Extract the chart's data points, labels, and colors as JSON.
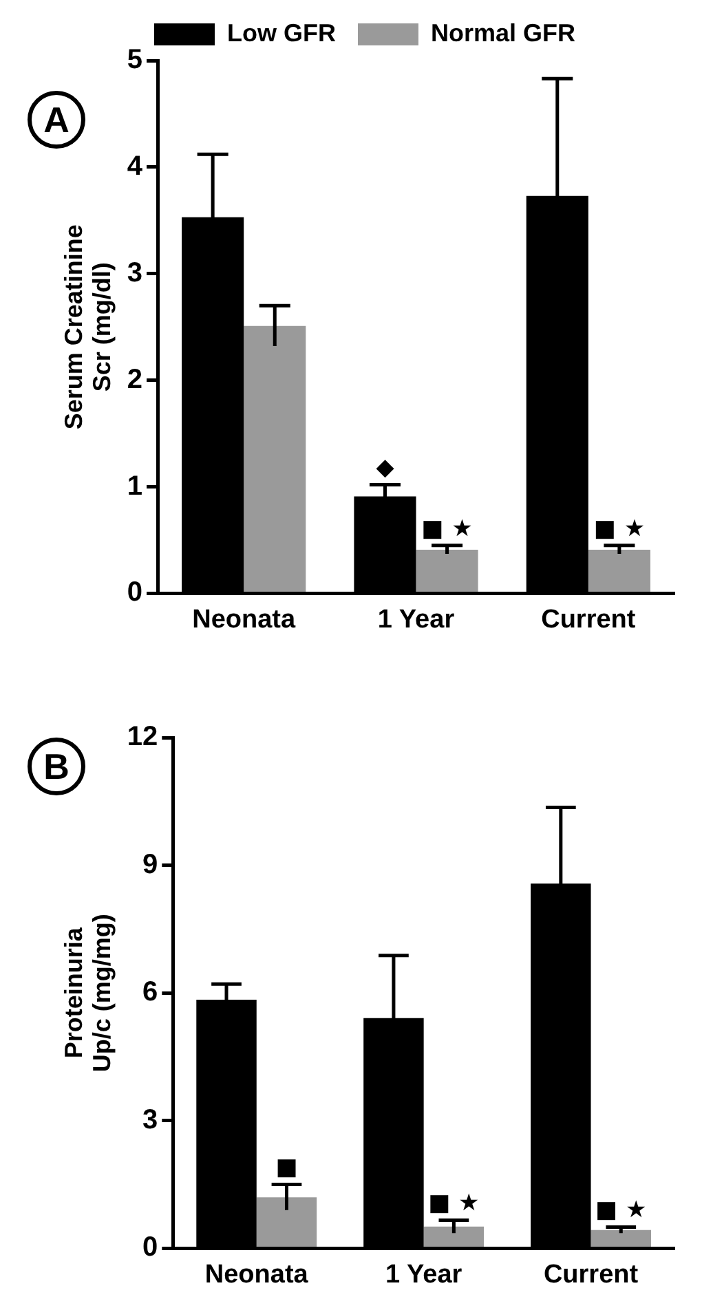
{
  "chart_data": [
    {
      "type": "bar",
      "title": "A",
      "ylabel": "Serum Creatinine\nScr (mg/dl)",
      "categories": [
        "Neonata",
        "1 Year",
        "Current"
      ],
      "series": [
        {
          "name": "Low GFR",
          "color": "#000000",
          "values": [
            3.53,
            0.91,
            3.73
          ],
          "errors": [
            0.59,
            0.11,
            1.1
          ]
        },
        {
          "name": "Normal GFR",
          "color": "#9a9a9a",
          "values": [
            2.51,
            0.41,
            0.41
          ],
          "errors": [
            0.19,
            0.04,
            0.04
          ]
        }
      ],
      "ylim": [
        0,
        5
      ],
      "yticks": [
        0,
        1,
        2,
        3,
        4,
        5
      ],
      "grid": false,
      "legend": "top",
      "annotations": [
        {
          "text": "◆",
          "x": "1 Year",
          "y": 0.91
        },
        {
          "text": "■ ★",
          "x": "1 Year",
          "y": 0.41
        },
        {
          "text": "■ ★",
          "x": "Current",
          "y": 0.41
        }
      ]
    },
    {
      "type": "bar",
      "title": "B",
      "ylabel": "Proteinuria\nUp/c (mg/mg)",
      "categories": [
        "Neonata",
        "1 Year",
        "Current"
      ],
      "series": [
        {
          "color": "#000000",
          "values": [
            5.84,
            5.41,
            8.57
          ],
          "errors": [
            0.37,
            1.47,
            1.79
          ]
        },
        {
          "color": "#9a9a9a",
          "values": [
            1.2,
            0.51,
            0.43
          ],
          "errors": [
            0.3,
            0.15,
            0.07
          ]
        }
      ],
      "ylim": [
        0,
        12
      ],
      "yticks": [
        0,
        3,
        6,
        9,
        12
      ],
      "grid": false,
      "legend": false,
      "annotations": [
        {
          "text": "■",
          "x": "Neonata",
          "y": 1.2
        },
        {
          "text": "■ ★",
          "x": "1 Year",
          "y": 0.51
        },
        {
          "text": "■ ★",
          "x": "Current",
          "y": 0.43
        }
      ]
    }
  ]
}
